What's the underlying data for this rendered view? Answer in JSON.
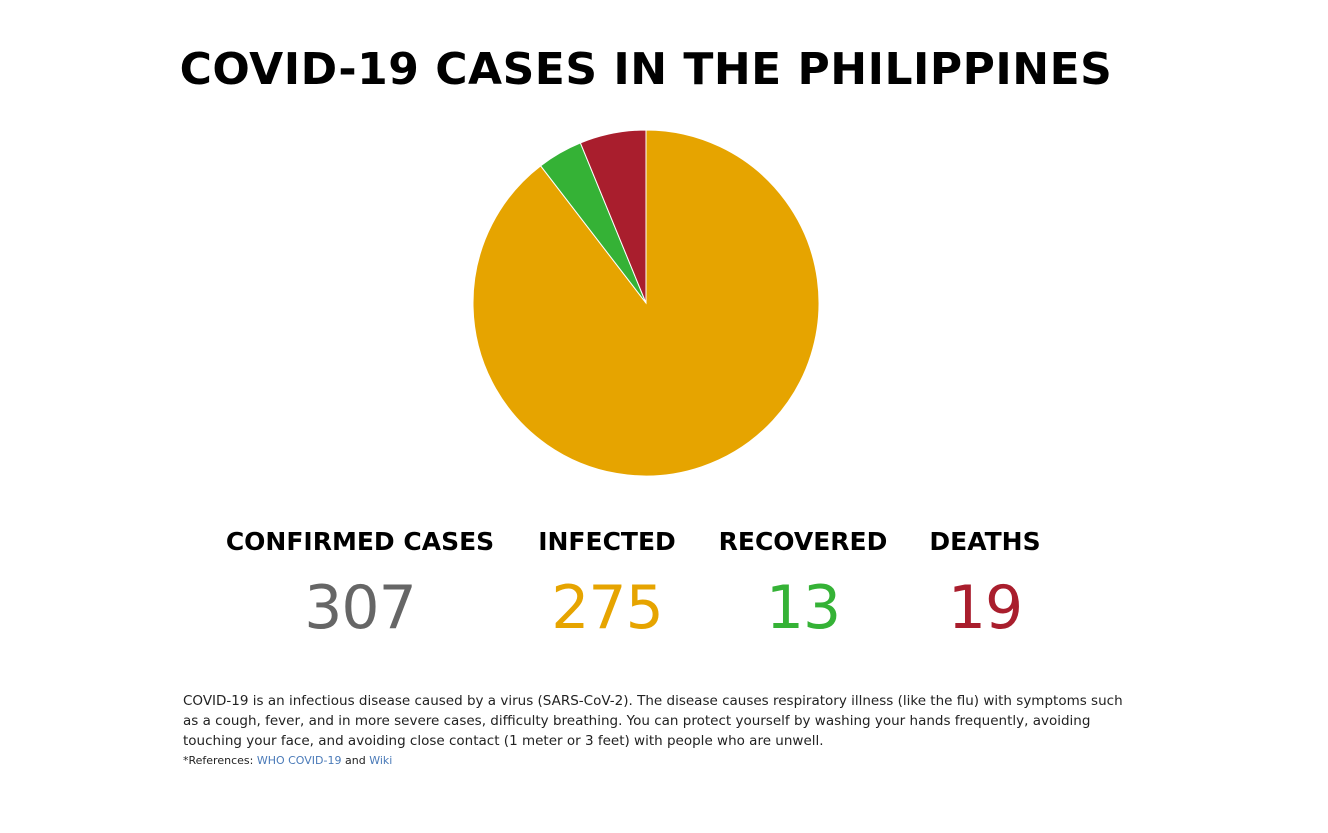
{
  "title": "COVID-19 CASES IN THE PHILIPPINES",
  "colors": {
    "confirmed": "#666666",
    "infected": "#e6a400",
    "recovered": "#35b236",
    "deaths": "#a91e2d"
  },
  "chart_data": {
    "type": "pie",
    "title": "",
    "slices": [
      {
        "name": "Infected",
        "value": 275,
        "color": "#e6a400"
      },
      {
        "name": "Recovered",
        "value": 13,
        "color": "#35b236"
      },
      {
        "name": "Deaths",
        "value": 19,
        "color": "#a91e2d"
      }
    ],
    "legend": "none"
  },
  "stats": {
    "confirmed": {
      "label": "CONFIRMED CASES",
      "value": "307"
    },
    "infected": {
      "label": "INFECTED",
      "value": "275"
    },
    "recovered": {
      "label": "RECOVERED",
      "value": "13"
    },
    "deaths": {
      "label": "DEATHS",
      "value": "19"
    }
  },
  "description": "COVID-19 is an infectious disease caused by a virus (SARS-CoV-2).  The disease causes respiratory illness (like the flu) with symptoms such as a cough, fever, and in more severe cases, difficulty breathing.  You can protect yourself by washing your hands frequently, avoiding touching your face, and avoiding close contact (1 meter or 3 feet) with people who are unwell.",
  "references": {
    "prefix": "*References: ",
    "link1": "WHO COVID-19",
    "middle": " and ",
    "link2": "Wiki"
  }
}
